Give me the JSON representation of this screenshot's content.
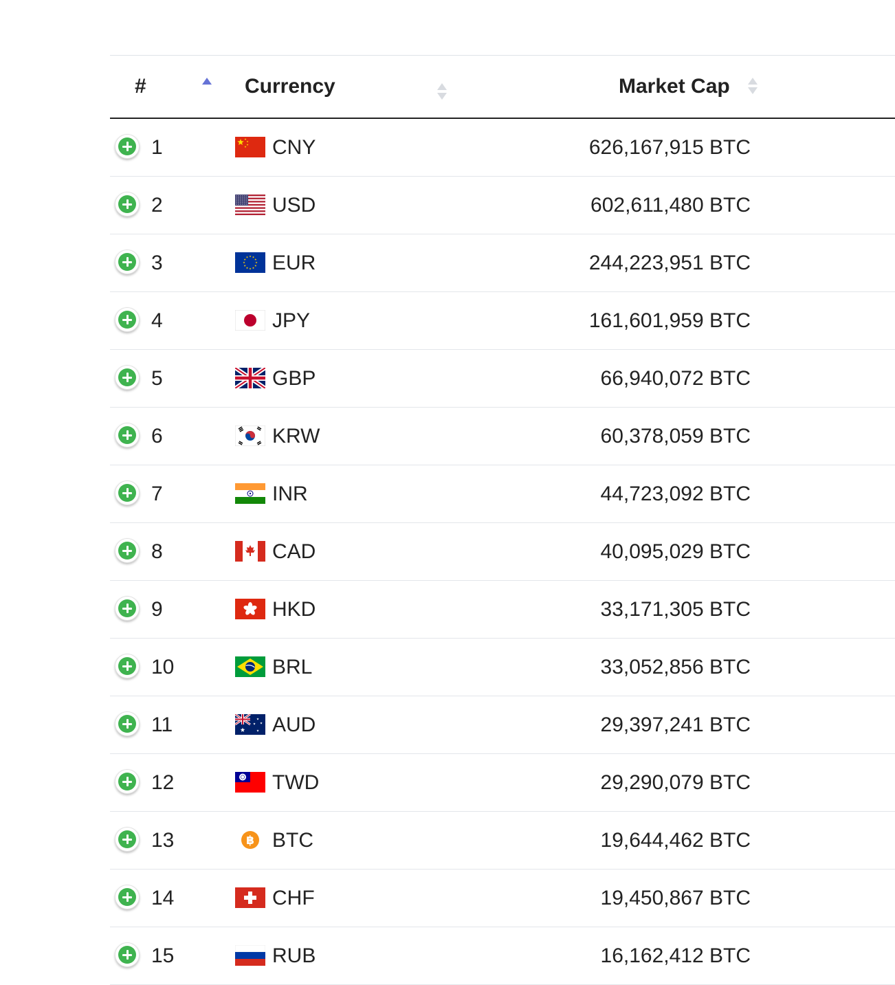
{
  "table": {
    "headers": {
      "rank": "#",
      "currency": "Currency",
      "market_cap": "Market Cap"
    },
    "sort": {
      "column": "rank",
      "direction": "ascending"
    },
    "rows": [
      {
        "rank": "1",
        "code": "CNY",
        "flag_icon": "china-flag-icon",
        "market_cap": "626,167,915 BTC"
      },
      {
        "rank": "2",
        "code": "USD",
        "flag_icon": "usa-flag-icon",
        "market_cap": "602,611,480 BTC"
      },
      {
        "rank": "3",
        "code": "EUR",
        "flag_icon": "eu-flag-icon",
        "market_cap": "244,223,951 BTC"
      },
      {
        "rank": "4",
        "code": "JPY",
        "flag_icon": "japan-flag-icon",
        "market_cap": "161,601,959 BTC"
      },
      {
        "rank": "5",
        "code": "GBP",
        "flag_icon": "uk-flag-icon",
        "market_cap": "66,940,072 BTC"
      },
      {
        "rank": "6",
        "code": "KRW",
        "flag_icon": "south-korea-flag-icon",
        "market_cap": "60,378,059 BTC"
      },
      {
        "rank": "7",
        "code": "INR",
        "flag_icon": "india-flag-icon",
        "market_cap": "44,723,092 BTC"
      },
      {
        "rank": "8",
        "code": "CAD",
        "flag_icon": "canada-flag-icon",
        "market_cap": "40,095,029 BTC"
      },
      {
        "rank": "9",
        "code": "HKD",
        "flag_icon": "hong-kong-flag-icon",
        "market_cap": "33,171,305 BTC"
      },
      {
        "rank": "10",
        "code": "BRL",
        "flag_icon": "brazil-flag-icon",
        "market_cap": "33,052,856 BTC"
      },
      {
        "rank": "11",
        "code": "AUD",
        "flag_icon": "australia-flag-icon",
        "market_cap": "29,397,241 BTC"
      },
      {
        "rank": "12",
        "code": "TWD",
        "flag_icon": "taiwan-flag-icon",
        "market_cap": "29,290,079 BTC"
      },
      {
        "rank": "13",
        "code": "BTC",
        "flag_icon": "bitcoin-icon",
        "market_cap": "19,644,462 BTC"
      },
      {
        "rank": "14",
        "code": "CHF",
        "flag_icon": "switzerland-flag-icon",
        "market_cap": "19,450,867 BTC"
      },
      {
        "rank": "15",
        "code": "RUB",
        "flag_icon": "russia-flag-icon",
        "market_cap": "16,162,412 BTC"
      }
    ]
  },
  "colors": {
    "add_button_green": "#3fb34f",
    "sort_active": "#6673d6",
    "sort_inactive": "#d8dbe0",
    "text": "#222222"
  }
}
